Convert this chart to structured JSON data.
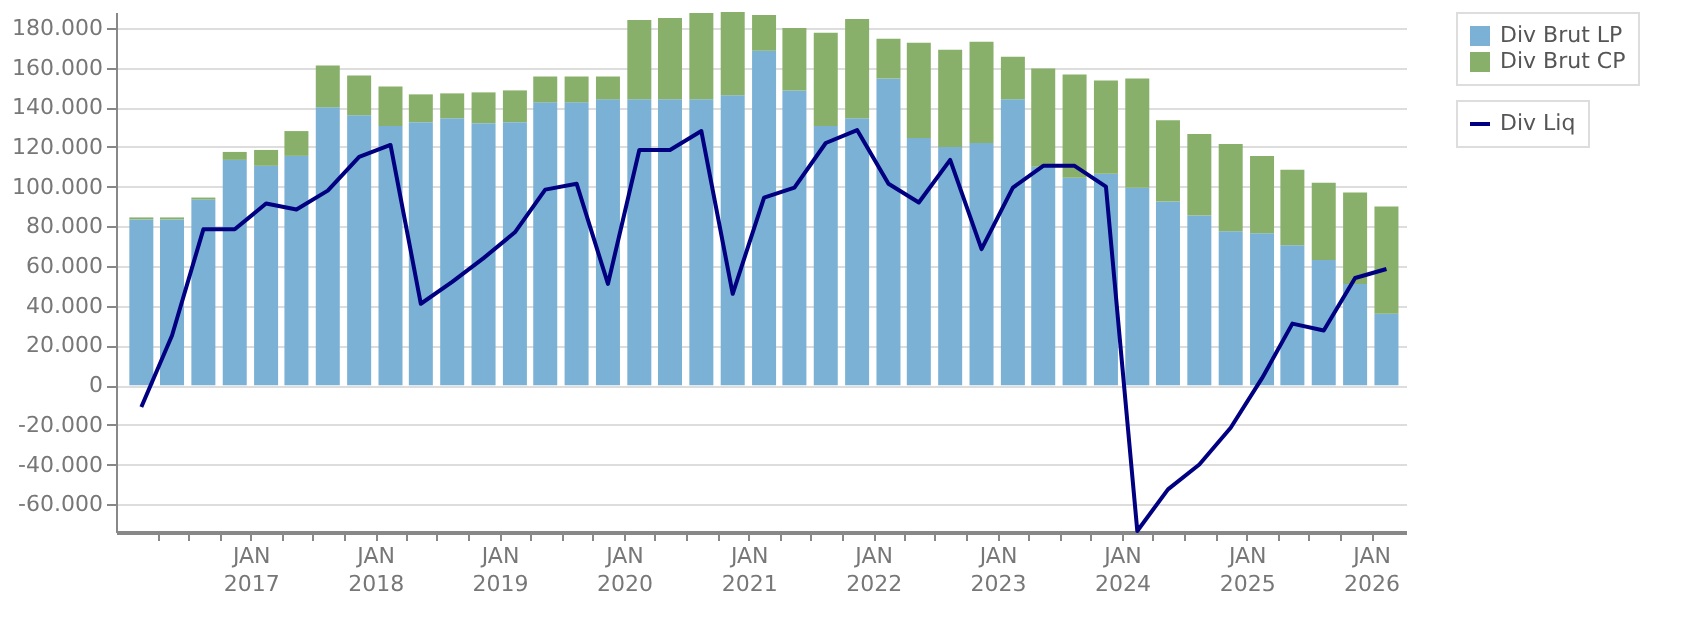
{
  "chart_data": {
    "type": "bar",
    "stacked": true,
    "x": [
      "2016-02-15",
      "2016-05-15",
      "2016-08-15",
      "2016-11-15",
      "2017-02-15",
      "2017-05-15",
      "2017-08-15",
      "2017-11-15",
      "2018-02-15",
      "2018-05-15",
      "2018-08-15",
      "2018-11-15",
      "2019-02-15",
      "2019-05-15",
      "2019-08-15",
      "2019-11-15",
      "2020-02-15",
      "2020-05-15",
      "2020-08-15",
      "2020-11-15",
      "2021-02-15",
      "2021-05-15",
      "2021-08-15",
      "2021-11-15",
      "2022-02-15",
      "2022-05-15",
      "2022-08-15",
      "2022-11-15",
      "2023-02-15",
      "2023-05-15",
      "2023-08-15",
      "2023-11-15",
      "2024-02-15",
      "2024-05-15",
      "2024-08-15",
      "2024-11-15",
      "2025-02-15",
      "2025-05-15",
      "2025-08-15",
      "2025-11-15",
      "2026-02-15"
    ],
    "series": [
      {
        "name": "Div Brut LP",
        "color": "#7ab1d4",
        "values": [
          83500,
          83500,
          93500,
          113500,
          110500,
          115500,
          140000,
          136000,
          130500,
          132500,
          134500,
          132000,
          132500,
          142500,
          142500,
          144000,
          144000,
          144000,
          144000,
          146000,
          168500,
          148500,
          130500,
          134500,
          154500,
          124500,
          120000,
          122000,
          144000,
          110000,
          104500,
          106500,
          99500,
          92500,
          85500,
          77500,
          76500,
          70500,
          63000,
          51000,
          36000
        ]
      },
      {
        "name": "Div Brut CP",
        "color": "#89b06a",
        "values": [
          1000,
          1000,
          1000,
          4000,
          8000,
          12500,
          21000,
          20000,
          20000,
          14000,
          12500,
          15500,
          16000,
          13000,
          13000,
          11500,
          40000,
          41000,
          43500,
          42000,
          18000,
          31500,
          47000,
          50000,
          20000,
          48000,
          49000,
          51000,
          21500,
          49500,
          52000,
          47000,
          55000,
          41000,
          41000,
          44000,
          39000,
          38000,
          39000,
          46000,
          54000
        ]
      },
      {
        "name": "Div Liq",
        "type": "line",
        "color": "#000080",
        "values": [
          -11000,
          25000,
          78500,
          78500,
          91500,
          88500,
          98000,
          115000,
          121000,
          41000,
          52000,
          64000,
          77000,
          98500,
          101500,
          51000,
          118500,
          118500,
          128000,
          46000,
          94500,
          99500,
          122000,
          128500,
          101500,
          92000,
          113500,
          68500,
          99500,
          110500,
          110500,
          100000,
          -73500,
          -52500,
          -40000,
          -21500,
          3500,
          31000,
          27500,
          54000,
          58500
        ]
      }
    ],
    "xlim": [
      "2016-01-01",
      "2026-03-15"
    ],
    "xticks": [
      {
        "value": "2016-04-01",
        "label": null
      },
      {
        "value": "2016-07-01",
        "label": null
      },
      {
        "value": "2016-10-01",
        "label": null
      },
      {
        "value": "2017-01-01",
        "label": "JAN 2017"
      },
      {
        "value": "2017-04-01",
        "label": null
      },
      {
        "value": "2017-07-01",
        "label": null
      },
      {
        "value": "2017-10-01",
        "label": null
      },
      {
        "value": "2018-01-01",
        "label": "JAN 2018"
      },
      {
        "value": "2018-04-01",
        "label": null
      },
      {
        "value": "2018-07-01",
        "label": null
      },
      {
        "value": "2018-10-01",
        "label": null
      },
      {
        "value": "2019-01-01",
        "label": "JAN 2019"
      },
      {
        "value": "2019-04-01",
        "label": null
      },
      {
        "value": "2019-07-01",
        "label": null
      },
      {
        "value": "2019-10-01",
        "label": null
      },
      {
        "value": "2020-01-01",
        "label": "JAN 2020"
      },
      {
        "value": "2020-04-01",
        "label": null
      },
      {
        "value": "2020-07-01",
        "label": null
      },
      {
        "value": "2020-10-01",
        "label": null
      },
      {
        "value": "2021-01-01",
        "label": "JAN 2021"
      },
      {
        "value": "2021-04-01",
        "label": null
      },
      {
        "value": "2021-07-01",
        "label": null
      },
      {
        "value": "2021-10-01",
        "label": null
      },
      {
        "value": "2022-01-01",
        "label": "JAN 2022"
      },
      {
        "value": "2022-04-01",
        "label": null
      },
      {
        "value": "2022-07-01",
        "label": null
      },
      {
        "value": "2022-10-01",
        "label": null
      },
      {
        "value": "2023-01-01",
        "label": "JAN 2023"
      },
      {
        "value": "2023-04-01",
        "label": null
      },
      {
        "value": "2023-07-01",
        "label": null
      },
      {
        "value": "2023-10-01",
        "label": null
      },
      {
        "value": "2024-01-01",
        "label": "JAN 2024"
      },
      {
        "value": "2024-04-01",
        "label": null
      },
      {
        "value": "2024-07-01",
        "label": null
      },
      {
        "value": "2024-10-01",
        "label": null
      },
      {
        "value": "2025-01-01",
        "label": "JAN 2025"
      },
      {
        "value": "2025-04-01",
        "label": null
      },
      {
        "value": "2025-07-01",
        "label": null
      },
      {
        "value": "2025-10-01",
        "label": null
      },
      {
        "value": "2026-01-01",
        "label": "JAN 2026"
      }
    ],
    "ylim": [
      -74000,
      188000
    ],
    "yticks": [
      {
        "value": -60000,
        "label": "-60.000"
      },
      {
        "value": -40000,
        "label": "-40.000"
      },
      {
        "value": -20000,
        "label": "-20.000"
      },
      0,
      {
        "value": 20000,
        "label": "20.000"
      },
      {
        "value": 40000,
        "label": "40.000"
      },
      {
        "value": 60000,
        "label": "60.000"
      },
      {
        "value": 80000,
        "label": "80.000"
      },
      {
        "value": 100000,
        "label": "100.000"
      },
      {
        "value": 120000,
        "label": "120.000"
      },
      {
        "value": 140000,
        "label": "140.000"
      },
      {
        "value": 160000,
        "label": "160.000"
      },
      {
        "value": 180000,
        "label": "180.000"
      }
    ],
    "grid": true,
    "legend": "top right",
    "line_style": "solid",
    "marker": "none"
  }
}
